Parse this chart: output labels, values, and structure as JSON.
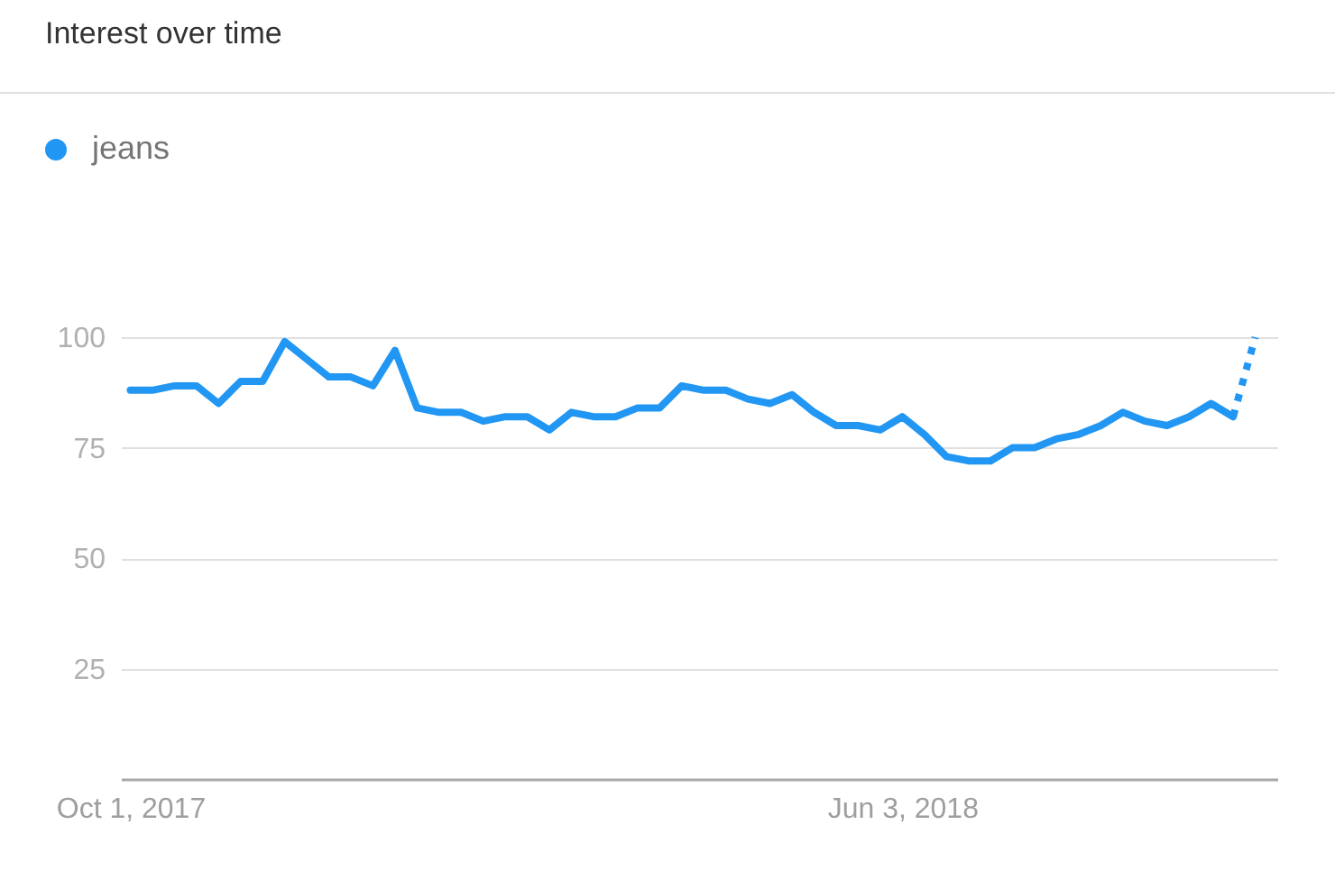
{
  "chart_data": {
    "type": "line",
    "title": "Interest over time",
    "x": [
      "2017-10-01",
      "2017-10-08",
      "2017-10-15",
      "2017-10-22",
      "2017-10-29",
      "2017-11-05",
      "2017-11-12",
      "2017-11-19",
      "2017-11-26",
      "2017-12-03",
      "2017-12-10",
      "2017-12-17",
      "2017-12-24",
      "2017-12-31",
      "2018-01-07",
      "2018-01-14",
      "2018-01-21",
      "2018-01-28",
      "2018-02-04",
      "2018-02-11",
      "2018-02-18",
      "2018-02-25",
      "2018-03-04",
      "2018-03-11",
      "2018-03-18",
      "2018-03-25",
      "2018-04-01",
      "2018-04-08",
      "2018-04-15",
      "2018-04-22",
      "2018-04-29",
      "2018-05-06",
      "2018-05-13",
      "2018-05-20",
      "2018-05-27",
      "2018-06-03",
      "2018-06-10",
      "2018-06-17",
      "2018-06-24",
      "2018-07-01",
      "2018-07-08",
      "2018-07-15",
      "2018-07-22",
      "2018-07-29",
      "2018-08-05",
      "2018-08-12",
      "2018-08-19",
      "2018-08-26",
      "2018-09-02",
      "2018-09-09",
      "2018-09-16"
    ],
    "xlim": [
      "2017-09-28",
      "2018-09-30"
    ],
    "xticks": [
      {
        "value": "2017-10-01",
        "label": "Oct 1, 2017"
      },
      {
        "value": "2018-06-03",
        "label": "Jun 3, 2018"
      }
    ],
    "ylim": [
      0,
      100
    ],
    "yticks": [
      25,
      50,
      75,
      100
    ],
    "series": [
      {
        "name": "jeans",
        "color": "#2196f3",
        "line_style": "solid",
        "values": [
          88,
          88,
          89,
          89,
          85,
          90,
          90,
          99,
          95,
          91,
          91,
          89,
          97,
          84,
          83,
          83,
          81,
          82,
          82,
          79,
          83,
          82,
          82,
          84,
          84,
          89,
          88,
          88,
          86,
          85,
          87,
          83,
          80,
          80,
          79,
          82,
          78,
          73,
          72,
          72,
          75,
          75,
          77,
          78,
          80,
          83,
          81,
          80,
          82,
          85,
          82
        ]
      },
      {
        "color": "#2196f3",
        "line_style": "dotted",
        "x": [
          "2018-09-16",
          "2018-09-23"
        ],
        "values": [
          82,
          100
        ]
      }
    ],
    "grid": "y",
    "legend": "top left"
  }
}
